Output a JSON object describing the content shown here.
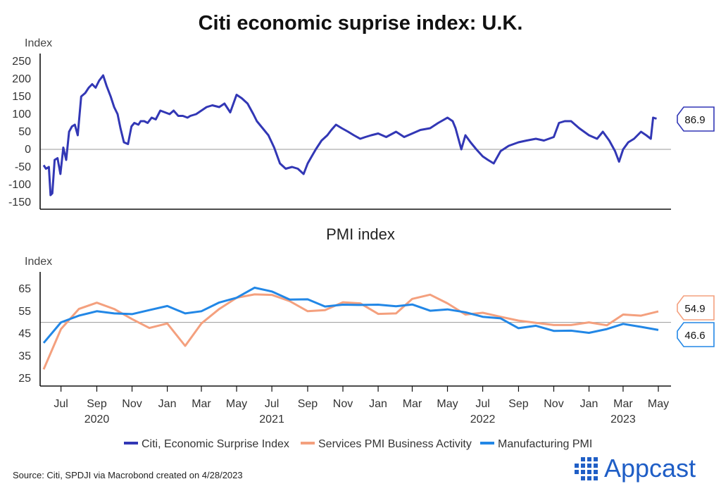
{
  "title": "Citi economic suprise index: U.K.",
  "source": "Source: Citi, SPDJI via Macrobond created on 4/28/2023",
  "brand": "Appcast",
  "colors": {
    "citi": "#3237b5",
    "services": "#f4a07e",
    "manufacturing": "#2287e6",
    "zero": "#999999",
    "axis": "#111111"
  },
  "chart_data": [
    {
      "type": "line",
      "ylabel": "Index",
      "ylim": [
        -160,
        260
      ],
      "yticks": [
        -150,
        -100,
        -50,
        0,
        50,
        100,
        150,
        200,
        250
      ],
      "reference_line": 0,
      "series": [
        {
          "name": "Citi, Economic Surprise Index",
          "x": [
            "2020-06-01",
            "2020-06-05",
            "2020-06-10",
            "2020-06-13",
            "2020-06-16",
            "2020-06-20",
            "2020-06-25",
            "2020-06-30",
            "2020-07-05",
            "2020-07-10",
            "2020-07-15",
            "2020-07-20",
            "2020-07-25",
            "2020-07-30",
            "2020-08-05",
            "2020-08-12",
            "2020-08-18",
            "2020-08-24",
            "2020-08-30",
            "2020-09-05",
            "2020-09-12",
            "2020-09-18",
            "2020-09-25",
            "2020-10-01",
            "2020-10-07",
            "2020-10-12",
            "2020-10-18",
            "2020-10-25",
            "2020-10-31",
            "2020-11-05",
            "2020-11-12",
            "2020-11-16",
            "2020-11-22",
            "2020-11-28",
            "2020-12-05",
            "2020-12-12",
            "2020-12-20",
            "2020-12-28",
            "2021-01-05",
            "2021-01-12",
            "2021-01-20",
            "2021-01-28",
            "2021-02-05",
            "2021-02-10",
            "2021-02-20",
            "2021-03-01",
            "2021-03-10",
            "2021-03-20",
            "2021-04-01",
            "2021-04-10",
            "2021-04-20",
            "2021-05-01",
            "2021-05-10",
            "2021-05-20",
            "2021-05-30",
            "2021-06-05",
            "2021-06-15",
            "2021-06-25",
            "2021-07-05",
            "2021-07-15",
            "2021-07-25",
            "2021-08-05",
            "2021-08-15",
            "2021-08-25",
            "2021-09-01",
            "2021-09-08",
            "2021-09-15",
            "2021-09-25",
            "2021-10-05",
            "2021-10-12",
            "2021-10-20",
            "2021-10-30",
            "2021-11-10",
            "2021-11-20",
            "2021-12-01",
            "2021-12-10",
            "2021-12-20",
            "2022-01-01",
            "2022-01-15",
            "2022-02-01",
            "2022-02-15",
            "2022-03-01",
            "2022-03-15",
            "2022-04-01",
            "2022-04-15",
            "2022-05-01",
            "2022-05-10",
            "2022-05-15",
            "2022-05-20",
            "2022-05-25",
            "2022-06-01",
            "2022-06-10",
            "2022-06-20",
            "2022-07-01",
            "2022-07-10",
            "2022-07-20",
            "2022-08-01",
            "2022-08-15",
            "2022-09-01",
            "2022-09-15",
            "2022-10-01",
            "2022-10-15",
            "2022-11-01",
            "2022-11-10",
            "2022-11-20",
            "2022-12-01",
            "2022-12-15",
            "2023-01-01",
            "2023-01-15",
            "2023-01-25",
            "2023-02-05",
            "2023-02-15",
            "2023-02-22",
            "2023-03-01",
            "2023-03-10",
            "2023-03-20",
            "2023-04-01",
            "2023-04-10",
            "2023-04-18",
            "2023-04-22",
            "2023-04-28"
          ],
          "values": [
            -45,
            -55,
            -50,
            -130,
            -125,
            -30,
            -25,
            -70,
            5,
            -30,
            50,
            65,
            70,
            40,
            150,
            160,
            175,
            185,
            175,
            195,
            210,
            180,
            150,
            120,
            100,
            60,
            20,
            15,
            65,
            75,
            70,
            80,
            80,
            75,
            90,
            85,
            110,
            105,
            100,
            110,
            95,
            95,
            90,
            95,
            100,
            110,
            120,
            125,
            120,
            130,
            105,
            155,
            145,
            130,
            100,
            80,
            60,
            40,
            5,
            -40,
            -55,
            -50,
            -55,
            -70,
            -40,
            -20,
            0,
            25,
            40,
            55,
            70,
            60,
            50,
            40,
            30,
            35,
            40,
            45,
            35,
            50,
            35,
            45,
            55,
            60,
            75,
            90,
            80,
            60,
            30,
            0,
            40,
            20,
            0,
            -20,
            -30,
            -40,
            -5,
            10,
            20,
            25,
            30,
            25,
            35,
            75,
            80,
            80,
            60,
            40,
            30,
            50,
            25,
            -5,
            -35,
            0,
            20,
            30,
            50,
            40,
            30,
            90,
            87
          ]
        }
      ]
    },
    {
      "type": "line",
      "title": "PMI index",
      "ylabel": "Index",
      "ylim": [
        23,
        70
      ],
      "yticks": [
        25,
        35,
        45,
        55,
        65
      ],
      "reference_line": 50,
      "x_axis": {
        "months": [
          "Jul",
          "Sep",
          "Nov",
          "Jan",
          "Mar",
          "May",
          "Jul",
          "Sep",
          "Nov",
          "Jan",
          "Mar",
          "May",
          "Jul",
          "Sep",
          "Nov",
          "Jan",
          "Mar",
          "May"
        ],
        "years": [
          "2020",
          "2021",
          "2022",
          "2023"
        ]
      },
      "series": [
        {
          "name": "Services PMI Business Activity",
          "x": [
            "2020-06-01",
            "2020-07-01",
            "2020-08-01",
            "2020-09-01",
            "2020-10-01",
            "2020-11-01",
            "2020-12-01",
            "2021-01-01",
            "2021-02-01",
            "2021-03-01",
            "2021-04-01",
            "2021-05-01",
            "2021-06-01",
            "2021-07-01",
            "2021-08-01",
            "2021-09-01",
            "2021-10-01",
            "2021-11-01",
            "2021-12-01",
            "2022-01-01",
            "2022-02-01",
            "2022-03-01",
            "2022-04-01",
            "2022-05-01",
            "2022-06-01",
            "2022-07-01",
            "2022-08-01",
            "2022-09-01",
            "2022-10-01",
            "2022-11-01",
            "2022-12-01",
            "2023-01-01",
            "2023-02-01",
            "2023-03-01",
            "2023-04-01",
            "2023-05-01"
          ],
          "values": [
            29,
            47,
            56,
            58.8,
            56,
            51.5,
            47.5,
            49.5,
            39.5,
            49.5,
            56,
            61,
            62.5,
            62.3,
            59.5,
            55,
            55.5,
            59,
            58.5,
            53.8,
            54,
            60.5,
            62.4,
            58.5,
            53.5,
            54.3,
            52.5,
            50.8,
            49.8,
            48.8,
            48.8,
            50,
            48.7,
            53.5,
            53,
            54.9
          ]
        },
        {
          "name": "Manufacturing PMI",
          "x": [
            "2020-06-01",
            "2020-07-01",
            "2020-08-01",
            "2020-09-01",
            "2020-10-01",
            "2020-11-01",
            "2020-12-01",
            "2021-01-01",
            "2021-02-01",
            "2021-03-01",
            "2021-04-01",
            "2021-05-01",
            "2021-06-01",
            "2021-07-01",
            "2021-08-01",
            "2021-09-01",
            "2021-10-01",
            "2021-11-01",
            "2021-12-01",
            "2022-01-01",
            "2022-02-01",
            "2022-03-01",
            "2022-04-01",
            "2022-05-01",
            "2022-06-01",
            "2022-07-01",
            "2022-08-01",
            "2022-09-01",
            "2022-10-01",
            "2022-11-01",
            "2022-12-01",
            "2023-01-01",
            "2023-02-01",
            "2023-03-01",
            "2023-04-01",
            "2023-05-01"
          ],
          "values": [
            40.8,
            50,
            53,
            55,
            54,
            53.7,
            55.5,
            57.3,
            54,
            55,
            58.9,
            61,
            65.5,
            63.8,
            60.2,
            60.3,
            57.1,
            57.9,
            57.8,
            57.9,
            57.2,
            58,
            55.2,
            55.8,
            54.5,
            52.5,
            51.8,
            47.4,
            48.5,
            46.2,
            46.3,
            45.3,
            47,
            49.3,
            48,
            46.6
          ]
        }
      ]
    }
  ],
  "callouts": {
    "citi": "86.9",
    "services": "54.9",
    "manufacturing": "46.6"
  }
}
